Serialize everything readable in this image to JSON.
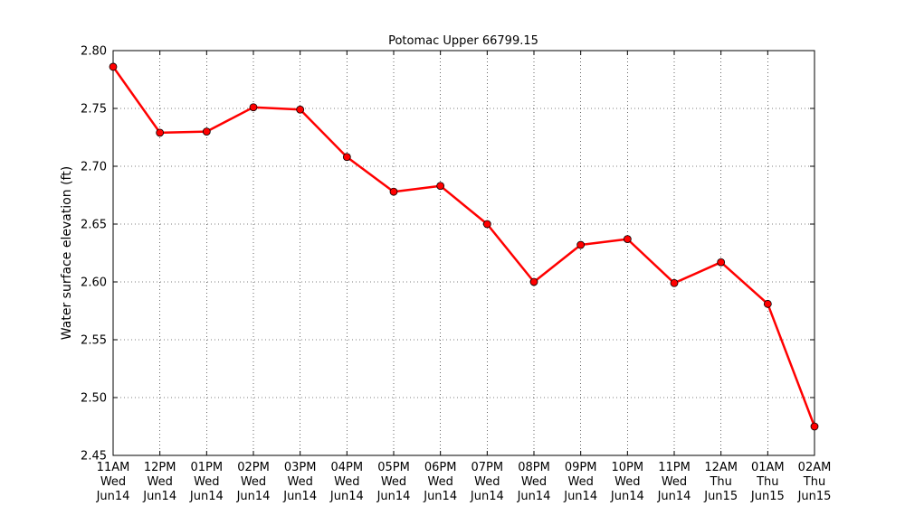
{
  "chart_data": {
    "type": "line",
    "title": "Potomac Upper 66799.15",
    "xlabel": "",
    "ylabel": "Water surface elevation (ft)",
    "ylim": [
      2.45,
      2.8
    ],
    "yticks": [
      "2.45",
      "2.50",
      "2.55",
      "2.60",
      "2.65",
      "2.70",
      "2.75",
      "2.80"
    ],
    "grid": true,
    "x": [
      [
        "11AM",
        "Wed",
        "Jun14"
      ],
      [
        "12PM",
        "Wed",
        "Jun14"
      ],
      [
        "01PM",
        "Wed",
        "Jun14"
      ],
      [
        "02PM",
        "Wed",
        "Jun14"
      ],
      [
        "03PM",
        "Wed",
        "Jun14"
      ],
      [
        "04PM",
        "Wed",
        "Jun14"
      ],
      [
        "05PM",
        "Wed",
        "Jun14"
      ],
      [
        "06PM",
        "Wed",
        "Jun14"
      ],
      [
        "07PM",
        "Wed",
        "Jun14"
      ],
      [
        "08PM",
        "Wed",
        "Jun14"
      ],
      [
        "09PM",
        "Wed",
        "Jun14"
      ],
      [
        "10PM",
        "Wed",
        "Jun14"
      ],
      [
        "11PM",
        "Wed",
        "Jun14"
      ],
      [
        "12AM",
        "Thu",
        "Jun15"
      ],
      [
        "01AM",
        "Thu",
        "Jun15"
      ],
      [
        "02AM",
        "Thu",
        "Jun15"
      ]
    ],
    "series": [
      {
        "values": [
          2.786,
          2.729,
          2.73,
          2.751,
          2.749,
          2.708,
          2.678,
          2.683,
          2.65,
          2.6,
          2.632,
          2.637,
          2.599,
          2.617,
          2.581,
          2.475
        ],
        "color": "#ff0000",
        "marker": "circle"
      }
    ]
  }
}
